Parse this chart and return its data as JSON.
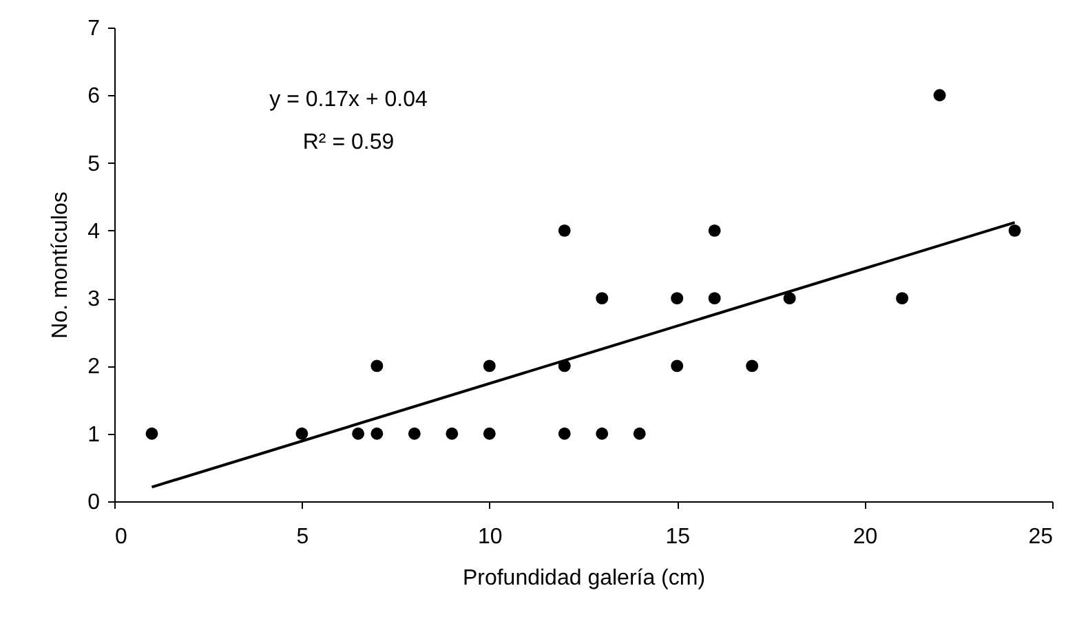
{
  "chart_data": {
    "type": "scatter",
    "xlabel": "Profundidad galería (cm)",
    "ylabel": "No. montículos",
    "annotations": [
      "y = 0.17x + 0.04",
      "R² = 0.59"
    ],
    "xlim": [
      0,
      25
    ],
    "xticks": [
      0,
      5,
      10,
      15,
      20,
      25
    ],
    "ylim": [
      0,
      7
    ],
    "yticks": [
      0,
      1,
      2,
      3,
      4,
      5,
      6,
      7
    ],
    "grid": false,
    "marker": "circle",
    "series": [
      {
        "color": "#000000",
        "x": [
          1,
          5,
          6.5,
          7,
          7,
          8,
          9,
          10,
          10,
          12,
          12,
          12,
          13,
          13,
          14,
          15,
          15,
          16,
          16,
          17,
          18,
          21,
          22,
          24
        ],
        "values": [
          1,
          1,
          1,
          1,
          2,
          1,
          1,
          1,
          2,
          1,
          2,
          4,
          1,
          3,
          1,
          2,
          3,
          3,
          4,
          2,
          3,
          3,
          6,
          4
        ]
      },
      {
        "type": "line",
        "color": "#000000",
        "line_style": "solid",
        "marker": "none",
        "x": [
          1,
          24
        ],
        "values": [
          0.21,
          4.12
        ]
      }
    ]
  }
}
